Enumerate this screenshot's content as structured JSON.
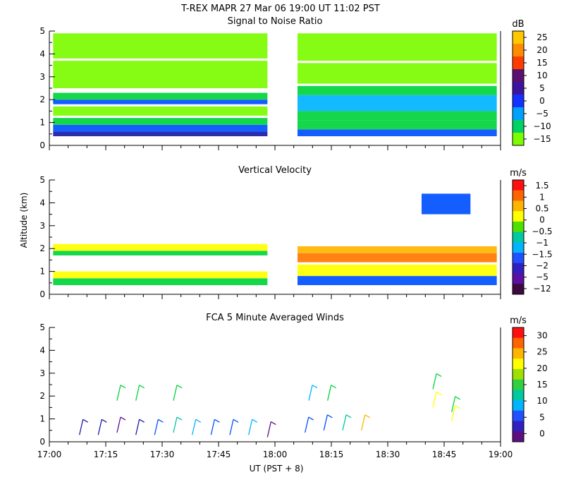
{
  "figure": {
    "title": "T-REX   MAPR 27 Mar 06   19:00 UT   11:02   PST",
    "ylabel": "Altitude (km)",
    "xlabel": "UT  (PST + 8)"
  },
  "colors": {
    "lime": "#7cfc00",
    "green": "#00d43c",
    "teal": "#00c8a0",
    "cyan": "#00b4ff",
    "blue": "#0050ff",
    "navy": "#1a1aa8",
    "purple": "#5a1090",
    "darkpurple": "#3c0a50",
    "red": "#ff2020",
    "orange": "#ff7800",
    "amber": "#ffb400",
    "yellow": "#ffff00"
  },
  "chart_data": [
    {
      "type": "heatmap",
      "title": "Signal to Noise Ratio",
      "unit": "dB",
      "x_range": [
        "17:00",
        "19:00"
      ],
      "ylim": [
        0,
        5
      ],
      "yticks": [
        0,
        1,
        2,
        3,
        4,
        5
      ],
      "colorbar": {
        "labels": [
          "25",
          "20",
          "15",
          "10",
          "5",
          "0",
          "−5",
          "−10",
          "−15"
        ],
        "colors": [
          "#ffc800",
          "#ff8c00",
          "#ff3c00",
          "#5a1070",
          "#3c14a0",
          "#1432ff",
          "#00a0ff",
          "#00d264",
          "#7cfc00"
        ]
      },
      "gap": [
        "17:58",
        "18:06"
      ],
      "bands": [
        {
          "t0": "17:01",
          "t1": "17:58",
          "y0": 0.4,
          "y1": 0.6,
          "color": "navy"
        },
        {
          "t0": "17:01",
          "t1": "17:58",
          "y0": 0.6,
          "y1": 0.9,
          "color": "blue"
        },
        {
          "t0": "17:01",
          "t1": "17:58",
          "y0": 0.9,
          "y1": 1.2,
          "color": "green"
        },
        {
          "t0": "17:01",
          "t1": "17:58",
          "y0": 1.3,
          "y1": 1.7,
          "color": "lime"
        },
        {
          "t0": "17:01",
          "t1": "17:58",
          "y0": 1.8,
          "y1": 2.0,
          "color": "blue"
        },
        {
          "t0": "17:01",
          "t1": "17:58",
          "y0": 2.0,
          "y1": 2.3,
          "color": "green"
        },
        {
          "t0": "17:01",
          "t1": "17:58",
          "y0": 2.5,
          "y1": 3.7,
          "color": "lime"
        },
        {
          "t0": "17:01",
          "t1": "17:58",
          "y0": 3.8,
          "y1": 4.9,
          "color": "lime"
        },
        {
          "t0": "18:06",
          "t1": "18:59",
          "y0": 0.4,
          "y1": 0.7,
          "color": "blue"
        },
        {
          "t0": "18:06",
          "t1": "18:59",
          "y0": 0.7,
          "y1": 1.1,
          "color": "green"
        },
        {
          "t0": "18:06",
          "t1": "18:59",
          "y0": 1.1,
          "y1": 1.5,
          "color": "green"
        },
        {
          "t0": "18:06",
          "t1": "18:59",
          "y0": 1.5,
          "y1": 2.2,
          "color": "cyan"
        },
        {
          "t0": "18:06",
          "t1": "18:59",
          "y0": 2.2,
          "y1": 2.6,
          "color": "green"
        },
        {
          "t0": "18:06",
          "t1": "18:59",
          "y0": 2.7,
          "y1": 3.6,
          "color": "lime"
        },
        {
          "t0": "18:06",
          "t1": "18:59",
          "y0": 3.7,
          "y1": 4.9,
          "color": "lime"
        }
      ]
    },
    {
      "type": "heatmap",
      "title": "Vertical Velocity",
      "unit": "m/s",
      "x_range": [
        "17:00",
        "19:00"
      ],
      "ylim": [
        0,
        5
      ],
      "yticks": [
        0,
        1,
        2,
        3,
        4,
        5
      ],
      "colorbar": {
        "labels": [
          "1.5",
          "1",
          "0.5",
          "0",
          "−0.5",
          "−1",
          "−1.5",
          "−2",
          "−5",
          "−12"
        ],
        "colors": [
          "#ff1010",
          "#ff6400",
          "#ffb400",
          "#ffff00",
          "#50e000",
          "#00c8a0",
          "#00b4ff",
          "#2050ff",
          "#3020c0",
          "#5a10a0",
          "#3c0a40"
        ]
      },
      "gap": [
        "17:58",
        "18:06"
      ],
      "bands": [
        {
          "t0": "17:01",
          "t1": "17:58",
          "y0": 0.4,
          "y1": 0.7,
          "color": "green"
        },
        {
          "t0": "17:01",
          "t1": "17:58",
          "y0": 0.7,
          "y1": 1.0,
          "color": "yellow"
        },
        {
          "t0": "17:01",
          "t1": "17:58",
          "y0": 1.7,
          "y1": 1.9,
          "color": "green"
        },
        {
          "t0": "17:01",
          "t1": "17:58",
          "y0": 1.9,
          "y1": 2.2,
          "color": "yellow"
        },
        {
          "t0": "18:06",
          "t1": "18:59",
          "y0": 0.4,
          "y1": 0.8,
          "color": "blue"
        },
        {
          "t0": "18:06",
          "t1": "18:59",
          "y0": 0.8,
          "y1": 1.3,
          "color": "yellow"
        },
        {
          "t0": "18:06",
          "t1": "18:59",
          "y0": 1.4,
          "y1": 1.8,
          "color": "orange"
        },
        {
          "t0": "18:06",
          "t1": "18:59",
          "y0": 1.8,
          "y1": 2.1,
          "color": "amber"
        },
        {
          "t0": "18:39",
          "t1": "18:52",
          "y0": 3.5,
          "y1": 4.4,
          "color": "blue"
        }
      ]
    },
    {
      "type": "scatter",
      "title": "FCA 5 Minute Averaged Winds",
      "unit": "m/s",
      "x_range": [
        "17:00",
        "19:00"
      ],
      "xticks": [
        "17:00",
        "17:15",
        "17:30",
        "17:45",
        "18:00",
        "18:15",
        "18:30",
        "18:45",
        "19:00"
      ],
      "ylim": [
        0,
        5
      ],
      "yticks": [
        0,
        1,
        2,
        3,
        4,
        5
      ],
      "colorbar": {
        "labels": [
          "30",
          "25",
          "20",
          "15",
          "10",
          "5",
          "0"
        ],
        "colors": [
          "#ff1010",
          "#ff6400",
          "#ffb400",
          "#ffff00",
          "#a0e000",
          "#30d040",
          "#00c8a0",
          "#00b4ff",
          "#2050ff",
          "#3020c0",
          "#5a1080"
        ]
      },
      "barbs": [
        {
          "t": "17:08",
          "alt": 0.3,
          "color": "navy"
        },
        {
          "t": "17:13",
          "alt": 0.3,
          "color": "navy"
        },
        {
          "t": "17:18",
          "alt": 0.4,
          "color": "purple"
        },
        {
          "t": "17:18",
          "alt": 1.8,
          "color": "green"
        },
        {
          "t": "17:23",
          "alt": 0.3,
          "color": "navy"
        },
        {
          "t": "17:23",
          "alt": 1.8,
          "color": "green"
        },
        {
          "t": "17:28",
          "alt": 0.3,
          "color": "blue"
        },
        {
          "t": "17:33",
          "alt": 0.4,
          "color": "teal"
        },
        {
          "t": "17:33",
          "alt": 1.8,
          "color": "green"
        },
        {
          "t": "17:38",
          "alt": 0.3,
          "color": "cyan"
        },
        {
          "t": "17:43",
          "alt": 0.3,
          "color": "blue"
        },
        {
          "t": "17:48",
          "alt": 0.3,
          "color": "blue"
        },
        {
          "t": "17:53",
          "alt": 0.3,
          "color": "cyan"
        },
        {
          "t": "17:58",
          "alt": 0.2,
          "color": "purple"
        },
        {
          "t": "18:08",
          "alt": 0.4,
          "color": "blue"
        },
        {
          "t": "18:09",
          "alt": 1.8,
          "color": "cyan"
        },
        {
          "t": "18:13",
          "alt": 0.5,
          "color": "blue"
        },
        {
          "t": "18:14",
          "alt": 1.8,
          "color": "green"
        },
        {
          "t": "18:18",
          "alt": 0.5,
          "color": "teal"
        },
        {
          "t": "18:23",
          "alt": 0.5,
          "color": "amber"
        },
        {
          "t": "18:42",
          "alt": 1.5,
          "color": "yellow"
        },
        {
          "t": "18:42",
          "alt": 2.3,
          "color": "green"
        },
        {
          "t": "18:47",
          "alt": 1.3,
          "color": "green"
        },
        {
          "t": "18:47",
          "alt": 0.9,
          "color": "yellow"
        }
      ]
    }
  ]
}
